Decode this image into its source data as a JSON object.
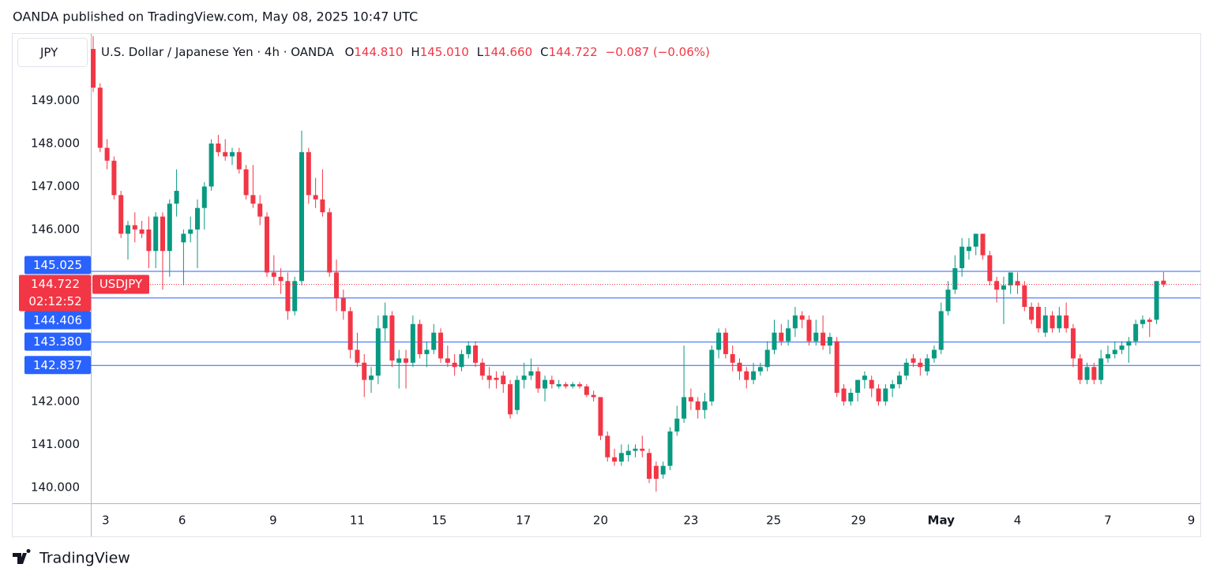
{
  "header": "OANDA published on TradingView.com, May 08, 2025 10:47 UTC",
  "footer": "TradingView",
  "chart_data": {
    "type": "candlestick",
    "title": "U.S. Dollar / Japanese Yen · 4h · OANDA",
    "currency": "JPY",
    "symbol": "USDJPY",
    "countdown": "02:12:52",
    "legend_ohlc": [
      {
        "name": "O",
        "value": 144.81,
        "label": "144.810"
      },
      {
        "name": "H",
        "value": 145.01,
        "label": "145.010"
      },
      {
        "name": "L",
        "value": 144.66,
        "label": "144.660"
      },
      {
        "name": "C",
        "value": 144.722,
        "label": "144.722"
      }
    ],
    "change": "−0.087 (−0.06%)",
    "up_color": "#089981",
    "down_color": "#f23645",
    "level_color": "#2962ff",
    "grid": false,
    "xlim": [
      -0.34,
      159.3
    ],
    "xticks": [
      {
        "value": 1.8,
        "label": "3"
      },
      {
        "value": 12.8,
        "label": "6"
      },
      {
        "value": 25.9,
        "label": "9"
      },
      {
        "value": 38,
        "label": "11"
      },
      {
        "value": 49.8,
        "label": "15"
      },
      {
        "value": 61.9,
        "label": "17"
      },
      {
        "value": 73,
        "label": "20"
      },
      {
        "value": 86,
        "label": "23"
      },
      {
        "value": 97.9,
        "label": "25"
      },
      {
        "value": 110.1,
        "label": "29"
      },
      {
        "value": 122,
        "label": "May"
      },
      {
        "value": 133,
        "label": "4"
      },
      {
        "value": 146,
        "label": "7"
      },
      {
        "value": 158,
        "label": "9"
      }
    ],
    "ylim": [
      139.63,
      150.55
    ],
    "yticks": [
      {
        "value": 140,
        "label": "140.000"
      },
      {
        "value": 141,
        "label": "141.000"
      },
      {
        "value": 142,
        "label": "142.000"
      },
      {
        "value": 146,
        "label": "146.000"
      },
      {
        "value": 147,
        "label": "147.000"
      },
      {
        "value": 148,
        "label": "148.000"
      },
      {
        "value": 149,
        "label": "149.000"
      }
    ],
    "levels": [
      {
        "value": 145.025,
        "label": "145.025"
      },
      {
        "value": 144.406,
        "label": "144.406"
      },
      {
        "value": 143.38,
        "label": "143.380"
      },
      {
        "value": 142.837,
        "label": "142.837"
      }
    ],
    "last_price": {
      "value": 144.722,
      "label": "144.722"
    },
    "open": [
      150.2,
      149.3,
      147.9,
      147.6,
      146.8,
      145.9,
      146.1,
      146.0,
      146.0,
      145.5,
      146.3,
      145.5,
      146.6,
      145.7,
      145.9,
      146.0,
      146.5,
      147.0,
      148.0,
      147.8,
      147.7,
      147.8,
      147.4,
      146.8,
      146.6,
      146.3,
      145.0,
      144.9,
      144.8,
      144.1,
      144.8,
      147.8,
      146.8,
      146.7,
      146.4,
      145.0,
      144.4,
      144.1,
      143.2,
      142.9,
      142.5,
      142.6,
      143.7,
      144.0,
      142.9,
      143.0,
      142.9,
      143.8,
      143.1,
      143.2,
      143.6,
      143.0,
      142.9,
      142.8,
      143.1,
      143.3,
      142.9,
      142.6,
      142.55,
      142.6,
      142.4,
      141.8,
      142.5,
      142.6,
      142.7,
      142.3,
      142.5,
      142.35,
      142.4,
      142.35,
      142.4,
      142.35,
      142.15,
      142.1,
      141.2,
      140.7,
      140.6,
      140.75,
      140.85,
      140.9,
      140.8,
      140.5,
      140.3,
      140.5,
      141.3,
      141.6,
      142.1,
      142.0,
      141.8,
      142.0,
      143.2,
      143.6,
      143.1,
      142.9,
      142.7,
      142.5,
      142.7,
      142.8,
      143.2,
      143.6,
      143.4,
      143.7,
      144.0,
      143.9,
      143.4,
      143.6,
      143.3,
      143.4,
      142.3,
      142.0,
      142.2,
      142.5,
      142.5,
      142.3,
      142.0,
      142.3,
      142.4,
      142.6,
      143.0,
      142.9,
      142.7,
      143.0,
      143.2,
      144.1,
      144.6,
      145.1,
      145.5,
      145.6,
      145.9,
      145.4,
      144.8,
      144.6,
      144.7,
      144.8,
      144.7,
      144.2,
      144.2,
      143.6,
      144.0,
      143.7,
      144.0,
      143.7,
      143.0,
      142.5,
      142.8,
      142.5,
      143.0,
      143.1,
      143.2,
      143.3,
      143.4,
      143.8,
      143.9,
      143.9,
      144.81
    ],
    "high": [
      150.5,
      149.4,
      148.1,
      147.7,
      146.9,
      146.2,
      146.4,
      146.2,
      146.3,
      146.4,
      146.4,
      146.7,
      147.4,
      146.0,
      146.3,
      146.7,
      147.1,
      148.1,
      148.2,
      148.1,
      147.9,
      147.9,
      147.5,
      147.5,
      146.8,
      146.4,
      145.4,
      145.1,
      145.0,
      144.9,
      148.3,
      147.9,
      147.2,
      147.4,
      146.5,
      145.3,
      144.6,
      144.2,
      143.6,
      143.1,
      142.8,
      144.0,
      144.3,
      144.1,
      143.2,
      143.2,
      144.0,
      143.9,
      143.4,
      143.8,
      143.7,
      143.3,
      143.1,
      143.2,
      143.4,
      143.4,
      143.0,
      142.8,
      142.7,
      142.7,
      142.5,
      142.6,
      142.9,
      143.0,
      142.8,
      142.6,
      142.6,
      142.5,
      142.45,
      142.45,
      142.45,
      142.4,
      142.25,
      142.1,
      141.3,
      140.9,
      141.0,
      141.0,
      141.0,
      141.2,
      140.9,
      140.6,
      140.6,
      141.4,
      141.9,
      143.3,
      142.3,
      142.1,
      142.2,
      143.3,
      143.7,
      143.7,
      143.3,
      143.0,
      142.8,
      142.9,
      142.9,
      143.4,
      143.9,
      143.8,
      143.9,
      144.2,
      144.1,
      144.0,
      143.9,
      144.0,
      143.6,
      143.5,
      142.4,
      142.3,
      142.5,
      142.7,
      142.6,
      142.4,
      142.4,
      142.5,
      142.7,
      143.0,
      143.1,
      143.0,
      143.1,
      143.3,
      144.3,
      144.8,
      145.4,
      145.8,
      145.8,
      145.9,
      145.9,
      145.5,
      144.9,
      144.9,
      145.0,
      145.0,
      144.8,
      144.3,
      144.3,
      144.2,
      144.1,
      144.2,
      144.3,
      143.8,
      143.1,
      142.9,
      142.9,
      143.2,
      143.3,
      143.4,
      143.4,
      143.5,
      143.9,
      144.0,
      143.95,
      144.8,
      145.01
    ],
    "low": [
      149.2,
      147.8,
      147.4,
      146.7,
      145.8,
      145.3,
      145.7,
      145.8,
      145.1,
      145.1,
      144.6,
      144.9,
      146.3,
      144.7,
      145.7,
      145.1,
      146.0,
      146.9,
      147.7,
      147.6,
      147.5,
      147.3,
      146.7,
      146.5,
      146.1,
      144.9,
      144.7,
      144.5,
      143.9,
      144.0,
      144.7,
      146.6,
      146.5,
      146.3,
      144.9,
      144.1,
      143.9,
      143.0,
      142.8,
      142.1,
      142.2,
      142.4,
      143.4,
      142.8,
      142.3,
      142.3,
      142.8,
      143.0,
      142.8,
      143.1,
      142.9,
      142.8,
      142.6,
      142.7,
      143.0,
      142.8,
      142.5,
      142.3,
      142.3,
      142.2,
      141.6,
      141.7,
      142.3,
      142.5,
      142.2,
      142.0,
      142.3,
      142.3,
      142.3,
      142.3,
      142.3,
      142.1,
      142.0,
      141.1,
      140.6,
      140.5,
      140.5,
      140.6,
      140.7,
      140.7,
      140.1,
      139.9,
      140.2,
      140.4,
      141.2,
      141.5,
      141.8,
      141.6,
      141.6,
      141.9,
      143.0,
      143.0,
      142.7,
      142.5,
      142.3,
      142.4,
      142.6,
      142.7,
      143.1,
      143.3,
      143.3,
      143.5,
      143.7,
      143.3,
      143.3,
      143.2,
      143.1,
      142.1,
      141.9,
      141.9,
      142.0,
      142.3,
      142.1,
      141.9,
      141.9,
      142.1,
      142.3,
      142.5,
      142.8,
      142.6,
      142.6,
      142.9,
      143.1,
      144.0,
      144.5,
      144.9,
      145.3,
      145.4,
      145.3,
      144.7,
      144.3,
      143.8,
      144.5,
      144.5,
      144.1,
      143.8,
      143.6,
      143.5,
      143.6,
      143.6,
      143.6,
      142.8,
      142.4,
      142.4,
      142.4,
      142.4,
      142.9,
      143.0,
      143.1,
      142.9,
      143.3,
      143.7,
      143.5,
      143.8,
      144.66
    ],
    "close": [
      149.3,
      147.9,
      147.6,
      146.8,
      145.9,
      146.1,
      146.0,
      145.9,
      145.5,
      146.3,
      145.5,
      146.6,
      146.9,
      145.9,
      146.0,
      146.5,
      147.0,
      148.0,
      147.8,
      147.7,
      147.8,
      147.4,
      146.8,
      146.6,
      146.3,
      145.0,
      144.9,
      144.8,
      144.1,
      144.8,
      147.8,
      146.8,
      146.7,
      146.4,
      145.0,
      144.4,
      144.1,
      143.2,
      142.9,
      142.5,
      142.6,
      143.7,
      144.0,
      142.95,
      143.0,
      142.9,
      143.8,
      143.1,
      143.2,
      143.6,
      143.0,
      142.9,
      142.8,
      143.1,
      143.3,
      142.9,
      142.6,
      142.5,
      142.5,
      142.4,
      141.7,
      142.5,
      142.6,
      142.7,
      142.3,
      142.5,
      142.4,
      142.4,
      142.35,
      142.4,
      142.35,
      142.15,
      142.1,
      141.2,
      140.7,
      140.6,
      140.8,
      140.85,
      140.9,
      140.85,
      140.2,
      140.2,
      140.5,
      141.3,
      141.6,
      142.1,
      142.0,
      141.8,
      142.0,
      143.2,
      143.6,
      143.1,
      142.9,
      142.7,
      142.5,
      142.7,
      142.8,
      143.2,
      143.6,
      143.4,
      143.7,
      144.0,
      143.9,
      143.4,
      143.6,
      143.3,
      143.5,
      142.2,
      142.0,
      142.2,
      142.5,
      142.6,
      142.3,
      142.0,
      142.3,
      142.4,
      142.6,
      142.9,
      142.9,
      142.8,
      143.0,
      143.2,
      144.1,
      144.6,
      145.1,
      145.6,
      145.6,
      145.9,
      145.4,
      144.8,
      144.6,
      144.7,
      145.0,
      144.7,
      144.2,
      143.9,
      143.7,
      144.0,
      143.7,
      144.0,
      143.7,
      143.0,
      142.5,
      142.8,
      142.5,
      143.0,
      143.1,
      143.2,
      143.3,
      143.4,
      143.8,
      143.9,
      143.85,
      144.8,
      144.722
    ]
  }
}
